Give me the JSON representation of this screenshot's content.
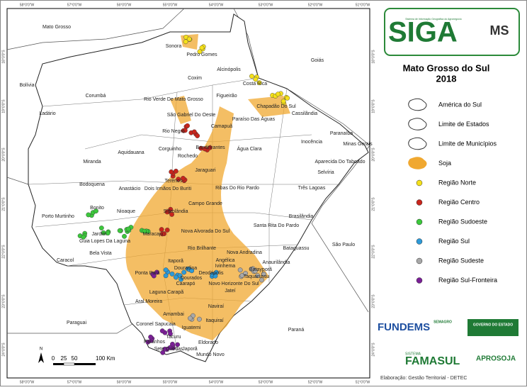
{
  "coordinates": {
    "longitudes": [
      "58°0'0\"W",
      "57°0'0\"W",
      "56°0'0\"W",
      "55°0'0\"W",
      "54°0'0\"W",
      "53°0'0\"W",
      "52°0'0\"W",
      "51°0'0\"W"
    ],
    "latitudes": [
      "18°0'0\"S",
      "19°0'0\"S",
      "20°0'0\"S",
      "21°0'0\"S",
      "22°0'0\"S",
      "23°0'0\"S",
      "24°0'0\"S"
    ]
  },
  "places": [
    "Mato Grosso",
    "Sonora",
    "Pedro Gomes",
    "Goiás",
    "Alcinópolis",
    "Coxim",
    "Bolívia",
    "Costa Rica",
    "Corumbá",
    "Rio Verde De Mato Grosso",
    "Figueirão",
    "Chapadão Do Sul",
    "Cassilândia",
    "Ladário",
    "São Gabriel Do Oeste",
    "Paraíso Das Águas",
    "Camapuã",
    "Rio Negro",
    "Paranaíba",
    "Aquidauana",
    "Corguinho",
    "Bandeirantes",
    "Água Clara",
    "Inocência",
    "Minas Gerais",
    "Rochedo",
    "Miranda",
    "Jaraguari",
    "Aparecida Do Taboado",
    "Selvíria",
    "Terenos",
    "Bodoquena",
    "Anastácio",
    "Dois Irmãos Do Buriti",
    "Ribas Do Rio Pardo",
    "Três Lagoas",
    "Bonito",
    "Sidrolândia",
    "Campo Grande",
    "Nioaque",
    "Brasilândia",
    "Porto Murtinho",
    "Jardim",
    "Guia Lopes Da Laguna",
    "Maracaju",
    "Nova Alvorada Do Sul",
    "Santa Rita Do Pardo",
    "Bela Vista",
    "Rio Brilhante",
    "Bataguassu",
    "São Paulo",
    "Nova Andradina",
    "Caracol",
    "Angélica",
    "Anaurilândia",
    "Itaporã",
    "Ponta Porã",
    "Douradina",
    "Dourados",
    "Deodápolis",
    "Ivinhema",
    "Taquarussu",
    "Novo Horizonte Do Sul",
    "Laguna Carapã",
    "Caarapó",
    "Jateí",
    "Batayporã",
    "Aral Moreira",
    "Amambai",
    "Naviraí",
    "Paraguai",
    "Coronel Sapucaia",
    "Itaquiraí",
    "Iguatemi",
    "Paraná",
    "Tacuru",
    "Paranhos",
    "Sete Quedas",
    "Eldorado",
    "Japorã",
    "Mundo Novo"
  ],
  "logo": {
    "name": "SIGA",
    "state": "MS",
    "subtitle": "Sistema de Informação Geográfica do Agronegócio"
  },
  "title": "Mato Grosso do Sul",
  "year": "2018",
  "legend": [
    {
      "label": "América do Sul",
      "symbol": "outline",
      "color": "#ffffff"
    },
    {
      "label": "Limite de Estados",
      "symbol": "outline",
      "color": "#ffffff"
    },
    {
      "label": "Limite de Municípios",
      "symbol": "outline",
      "color": "#ffffff"
    },
    {
      "label": "Soja",
      "symbol": "area",
      "color": "#f0a830"
    },
    {
      "label": "Região Norte",
      "symbol": "point",
      "color": "#f5e11a"
    },
    {
      "label": "Região Centro",
      "symbol": "point",
      "color": "#c8251c"
    },
    {
      "label": "Região Sudoeste",
      "symbol": "point",
      "color": "#3cc83c"
    },
    {
      "label": "Região Sul",
      "symbol": "point",
      "color": "#2d9ad8"
    },
    {
      "label": "Região Sudeste",
      "symbol": "point",
      "color": "#a8a8a8"
    },
    {
      "label": "Região Sul-Fronteira",
      "symbol": "point",
      "color": "#7a1f96"
    }
  ],
  "scale_bar": {
    "north": "N",
    "ticks": [
      "0",
      "25",
      "50",
      "100 Km"
    ]
  },
  "sponsors": {
    "fundems": "FUNDEMS",
    "semagro": "SEMAGRO",
    "governo": "GOVERNO DO ESTADO",
    "sistema": "SISTEMA",
    "famasul": "FAMASUL",
    "aprosoja": "APROSOJA"
  },
  "credit": "Elaboração: Gestão Territorial - DETEC"
}
